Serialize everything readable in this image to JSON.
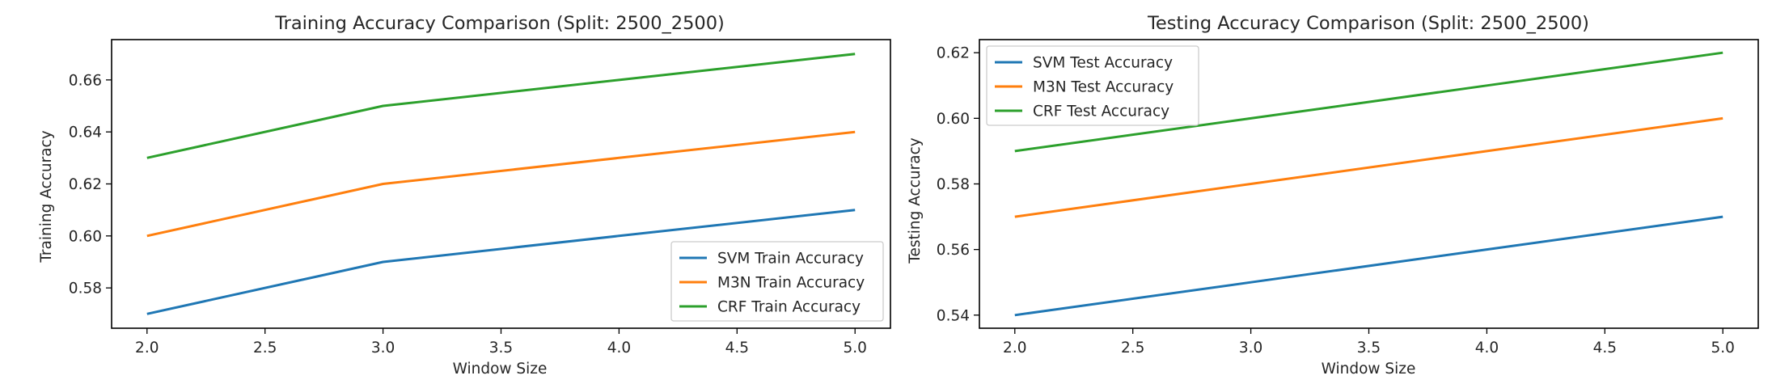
{
  "chart_data": [
    {
      "type": "line",
      "title": "Training Accuracy Comparison (Split: 2500_2500)",
      "xlabel": "Window Size",
      "ylabel": "Training Accuracy",
      "xlim": [
        1.85,
        5.15
      ],
      "ylim": [
        0.5645,
        0.6755
      ],
      "x": [
        2,
        3,
        4,
        5
      ],
      "xticks": [
        "2.0",
        "2.5",
        "3.0",
        "3.5",
        "4.0",
        "4.5",
        "5.0"
      ],
      "xtick_values": [
        2.0,
        2.5,
        3.0,
        3.5,
        4.0,
        4.5,
        5.0
      ],
      "yticks": [
        "0.58",
        "0.60",
        "0.62",
        "0.64",
        "0.66"
      ],
      "ytick_values": [
        0.58,
        0.6,
        0.62,
        0.64,
        0.66
      ],
      "legend_position": "lower-right",
      "grid": false,
      "series": [
        {
          "name": "SVM Train Accuracy",
          "color": "#1f77b4",
          "values": [
            0.57,
            0.59,
            0.6,
            0.61
          ]
        },
        {
          "name": "M3N Train Accuracy",
          "color": "#ff7f0e",
          "values": [
            0.6,
            0.62,
            0.63,
            0.64
          ]
        },
        {
          "name": "CRF Train Accuracy",
          "color": "#2ca02c",
          "values": [
            0.63,
            0.65,
            0.66,
            0.67
          ]
        }
      ]
    },
    {
      "type": "line",
      "title": "Testing Accuracy Comparison (Split: 2500_2500)",
      "xlabel": "Window Size",
      "ylabel": "Testing Accuracy",
      "xlim": [
        1.85,
        5.15
      ],
      "ylim": [
        0.536,
        0.624
      ],
      "x": [
        2,
        3,
        4,
        5
      ],
      "xticks": [
        "2.0",
        "2.5",
        "3.0",
        "3.5",
        "4.0",
        "4.5",
        "5.0"
      ],
      "xtick_values": [
        2.0,
        2.5,
        3.0,
        3.5,
        4.0,
        4.5,
        5.0
      ],
      "yticks": [
        "0.54",
        "0.56",
        "0.58",
        "0.60",
        "0.62"
      ],
      "ytick_values": [
        0.54,
        0.56,
        0.58,
        0.6,
        0.62
      ],
      "legend_position": "upper-left",
      "grid": false,
      "series": [
        {
          "name": "SVM Test Accuracy",
          "color": "#1f77b4",
          "values": [
            0.54,
            0.55,
            0.56,
            0.57
          ]
        },
        {
          "name": "M3N Test Accuracy",
          "color": "#ff7f0e",
          "values": [
            0.57,
            0.58,
            0.59,
            0.6
          ]
        },
        {
          "name": "CRF Test Accuracy",
          "color": "#2ca02c",
          "values": [
            0.59,
            0.6,
            0.61,
            0.62
          ]
        }
      ]
    }
  ]
}
